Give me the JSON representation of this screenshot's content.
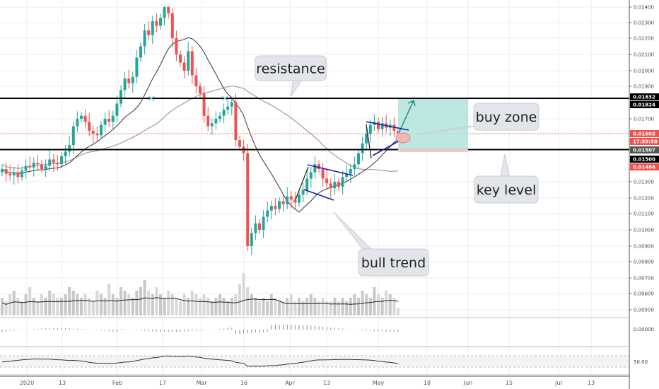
{
  "colors": {
    "up": "#26a69a",
    "down": "#ef5350",
    "ma_long": "#9e9e9e",
    "ma_short": "#333333",
    "level_line": "#000000",
    "wedge": "#1a1aa6",
    "buy_box": "#b2e3dc",
    "arrow": "#27876f",
    "grid": "#eeeeee"
  },
  "chart_data": {
    "type": "candlestick",
    "title": "",
    "y_axis": {
      "ticks": [
        "0.02400",
        "0.02300",
        "0.02200",
        "0.02100",
        "0.02000",
        "0.01900",
        "0.01700",
        "0.01300",
        "0.01200",
        "0.01100",
        "0.01000",
        "0.00900",
        "0.00800",
        "0.00700",
        "0.00600",
        "0.00500"
      ],
      "range": [
        0.0046,
        0.0244
      ]
    },
    "x_axis": {
      "ticks": [
        "2020",
        "13",
        "Feb",
        "17",
        "Mar",
        "16",
        "Apr",
        "13",
        "May",
        "18",
        "Jun",
        "15",
        "Jul",
        "13"
      ]
    },
    "price_tags": [
      {
        "label": "0.01832",
        "color": "#000000",
        "value": 0.01832
      },
      {
        "label": "0.01824",
        "color": "#000000",
        "value": 0.01824
      },
      {
        "label": "0.01602",
        "color": "#ef5350",
        "value": 0.01602
      },
      {
        "label": "17:59:58",
        "color": "#ef5350",
        "value": 0.01555
      },
      {
        "label": "0.01507",
        "color": "#555555",
        "value": 0.01507
      },
      {
        "label": "0.01500",
        "color": "#000000",
        "value": 0.015
      },
      {
        "label": "0.01486",
        "color": "#ef5350",
        "value": 0.01486
      }
    ],
    "closes": [
      0.0138,
      0.0135,
      0.0134,
      0.0136,
      0.0133,
      0.0137,
      0.014,
      0.0139,
      0.0142,
      0.0141,
      0.0138,
      0.014,
      0.0144,
      0.0142,
      0.0141,
      0.0146,
      0.0149,
      0.0153,
      0.0165,
      0.017,
      0.0172,
      0.0168,
      0.0162,
      0.016,
      0.0159,
      0.0166,
      0.017,
      0.0168,
      0.0172,
      0.018,
      0.0188,
      0.0195,
      0.0192,
      0.0196,
      0.0208,
      0.0215,
      0.0225,
      0.0222,
      0.0231,
      0.0228,
      0.0233,
      0.024,
      0.0236,
      0.022,
      0.021,
      0.0205,
      0.02,
      0.0212,
      0.0197,
      0.019,
      0.0186,
      0.0172,
      0.0165,
      0.0167,
      0.017,
      0.0172,
      0.0176,
      0.0178,
      0.0181,
      0.0156,
      0.0152,
      0.0148,
      0.009,
      0.0098,
      0.0104,
      0.01,
      0.0108,
      0.0112,
      0.0115,
      0.0113,
      0.0118,
      0.0116,
      0.0121,
      0.0119,
      0.0117,
      0.0122,
      0.0125,
      0.0132,
      0.0136,
      0.0141,
      0.0138,
      0.0132,
      0.0129,
      0.0126,
      0.013,
      0.0127,
      0.0133,
      0.0135,
      0.0138,
      0.0141,
      0.0148,
      0.0154,
      0.016,
      0.0166,
      0.0168,
      0.0163,
      0.0167,
      0.0164,
      0.0166,
      0.0162,
      0.016
    ],
    "volume": [
      0.5,
      0.4,
      0.6,
      0.7,
      0.5,
      0.4,
      0.6,
      0.8,
      0.5,
      0.4,
      0.6,
      0.5,
      0.7,
      0.6,
      0.5,
      0.5,
      0.6,
      0.8,
      0.7,
      0.6,
      0.5,
      0.6,
      0.5,
      0.4,
      0.7,
      0.6,
      0.5,
      0.9,
      0.6,
      0.5,
      0.8,
      0.7,
      0.6,
      0.5,
      0.7,
      0.8,
      1.0,
      0.7,
      0.6,
      0.8,
      0.6,
      0.5,
      0.7,
      0.6,
      0.5,
      0.4,
      0.6,
      0.5,
      0.7,
      0.6,
      0.5,
      0.6,
      0.5,
      0.4,
      0.5,
      0.6,
      0.5,
      0.4,
      0.5,
      0.6,
      0.9,
      1.2,
      0.8,
      0.6,
      0.5,
      0.4,
      0.5,
      0.4,
      0.6,
      0.5,
      0.4,
      0.4,
      0.5,
      0.6,
      0.4,
      0.5,
      0.4,
      0.5,
      0.6,
      0.5,
      0.4,
      0.5,
      0.4,
      0.4,
      0.5,
      0.4,
      0.5,
      0.4,
      0.5,
      0.6,
      0.5,
      0.7,
      0.6,
      0.5,
      0.8,
      0.6,
      0.5,
      0.7,
      0.6,
      0.5,
      0.2
    ],
    "oscillator": {
      "ticks": [
        "0.00000"
      ]
    },
    "rsi": {
      "ticks": [
        "50.00"
      ]
    },
    "annotations": [
      {
        "text": "resistance"
      },
      {
        "text": "buy zone"
      },
      {
        "text": "key level"
      },
      {
        "text": "bull trend"
      }
    ]
  }
}
